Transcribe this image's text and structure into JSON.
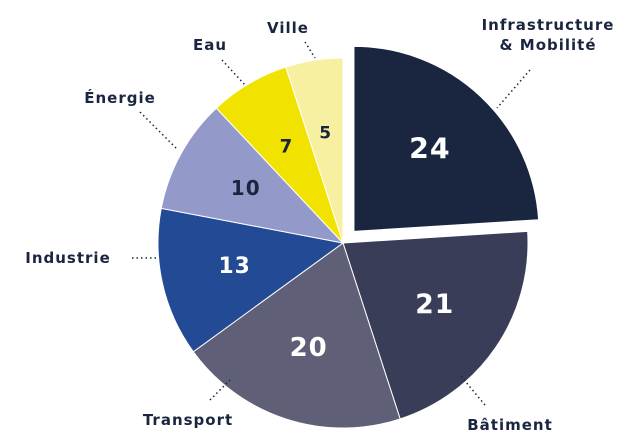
{
  "chart_data": {
    "type": "pie",
    "categories": [
      "Infrastructure\n& Mobilité",
      "Bâtiment",
      "Transport",
      "Industrie",
      "Énergie",
      "Eau",
      "Ville"
    ],
    "values": [
      24,
      21,
      20,
      13,
      10,
      7,
      5
    ],
    "colors": [
      "#1a2540",
      "#3a3d58",
      "#5f5f78",
      "#234a94",
      "#9399c9",
      "#f2e200",
      "#f7f0a0"
    ],
    "exploded": [
      0
    ]
  }
}
